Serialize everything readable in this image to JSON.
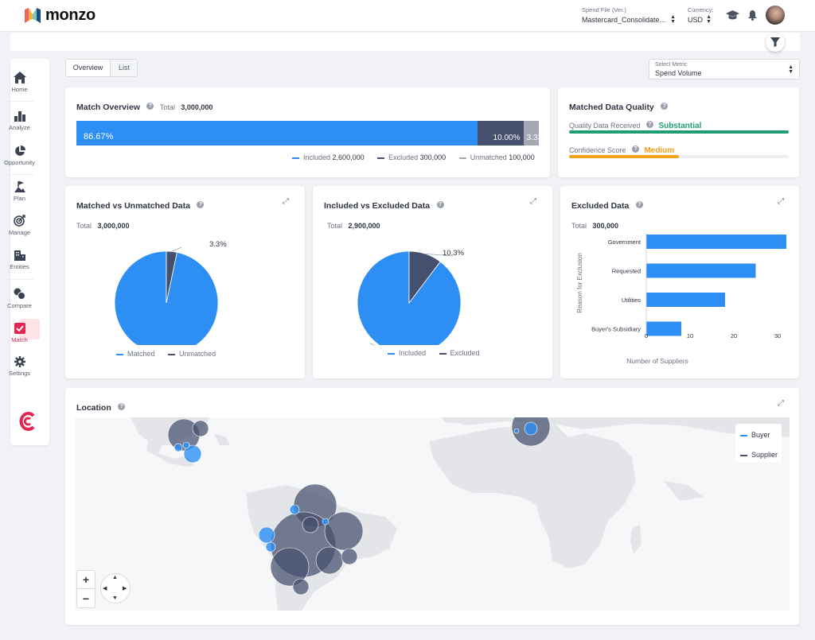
{
  "brand": {
    "name": "monzo"
  },
  "header": {
    "spend_file_label": "Spend File (Ver.)",
    "spend_file_value": "Mastercard_Consolidate...",
    "currency_label": "Currency:",
    "currency_value": "USD"
  },
  "sidebar": {
    "items": [
      {
        "label": "Home",
        "icon": "home-icon"
      },
      {
        "label": "Analyze",
        "icon": "bar-chart-icon"
      },
      {
        "label": "Opportunity",
        "icon": "pie-chart-icon"
      },
      {
        "label": "Plan",
        "icon": "plan-icon"
      },
      {
        "label": "Manage",
        "icon": "target-icon"
      },
      {
        "label": "Entities",
        "icon": "building-icon"
      },
      {
        "label": "Compare",
        "icon": "compare-icon"
      },
      {
        "label": "Match",
        "icon": "match-icon"
      },
      {
        "label": "Settings",
        "icon": "gear-icon"
      }
    ],
    "active": "Match"
  },
  "tabs": {
    "overview": "Overview",
    "list": "List"
  },
  "metric_select": {
    "label": "Select Metric",
    "value": "Spend Volume"
  },
  "match_overview": {
    "title": "Match Overview",
    "total_label": "Total",
    "total_value": "3,000,000",
    "segments": [
      {
        "label": "86.67%",
        "fraction": 0.8667,
        "color": "#2d8ef4"
      },
      {
        "label": "10.00%",
        "fraction": 0.1,
        "color": "#454f6e"
      },
      {
        "label": "3.33%",
        "fraction": 0.0333,
        "color": "#a3a8b3"
      }
    ],
    "legend": [
      {
        "name": "Included",
        "value": "2,600,000",
        "color": "#2d8ef4"
      },
      {
        "name": "Excluded",
        "value": "300,000",
        "color": "#454f6e"
      },
      {
        "name": "Unmatched",
        "value": "100,000",
        "color": "#a3a8b3"
      }
    ]
  },
  "quality": {
    "title": "Matched Data Quality",
    "received_label": "Quality Data Received",
    "received_value": "Substantial",
    "received_level": 1.0,
    "received_color": "#1f9e74",
    "confidence_label": "Confidence Score",
    "confidence_value": "Medium",
    "confidence_level": 0.5,
    "confidence_color": "#f5a11a"
  },
  "matched_vs_unmatched": {
    "title": "Matched vs Unmatched Data",
    "total_label": "Total",
    "total_value": "3,000,000",
    "legend": [
      "Matched",
      "Unmatched"
    ]
  },
  "included_vs_excluded": {
    "title": "Included vs Excluded Data",
    "total_label": "Total",
    "total_value": "2,900,000",
    "legend": [
      "Included",
      "Excluded"
    ]
  },
  "excluded_data": {
    "title": "Excluded Data",
    "total_label": "Total",
    "total_value": "300,000"
  },
  "location": {
    "title": "Location",
    "legend": [
      "Buyer",
      "Supplier"
    ],
    "zoom_in": "+",
    "zoom_out": "−"
  },
  "chart_data": [
    {
      "type": "pie",
      "title": "Matched vs Unmatched Data",
      "labels": [
        "Matched",
        "Unmatched"
      ],
      "values": [
        96.7,
        3.3
      ],
      "value_labels": [
        "96.7%",
        "3.3%"
      ],
      "colors": [
        "#2d8ef4",
        "#454f6e"
      ]
    },
    {
      "type": "pie",
      "title": "Included vs Excluded Data",
      "labels": [
        "Included",
        "Excluded"
      ],
      "values": [
        89.7,
        10.3
      ],
      "value_labels": [
        "89.7%",
        "10.3%"
      ],
      "colors": [
        "#2d8ef4",
        "#454f6e"
      ]
    },
    {
      "type": "bar",
      "orientation": "horizontal",
      "title": "Excluded Data",
      "categories": [
        "Government",
        "Requested",
        "Utilities",
        "Buyer's Subsidiary"
      ],
      "values": [
        32,
        25,
        18,
        8
      ],
      "xlabel": "Number of Suppliers",
      "ylabel": "Reason for Exclusion",
      "xticks": [
        "0",
        "10",
        "20",
        "30"
      ],
      "xlim": [
        0,
        32
      ],
      "color": "#2d8ef4"
    }
  ]
}
